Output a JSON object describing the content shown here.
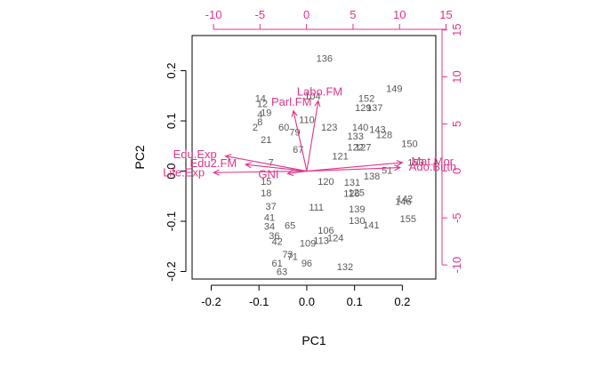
{
  "chart_data": {
    "type": "scatter",
    "subtype": "pca-biplot",
    "xlabel": "PC1",
    "ylabel": "PC2",
    "xlim": [
      -0.24,
      0.27
    ],
    "ylim": [
      -0.215,
      0.27
    ],
    "x_ticks": [
      -0.2,
      -0.1,
      0.0,
      0.1,
      0.2
    ],
    "x_tick_labels": [
      "-0.2",
      "-0.1",
      "0.0",
      "0.1",
      "0.2"
    ],
    "y_ticks": [
      -0.2,
      -0.1,
      0.0,
      0.1,
      0.2
    ],
    "y_tick_labels": [
      "-0.2",
      "-0.1",
      "0.0",
      "0.1",
      "0.2"
    ],
    "top_axis": {
      "ticks": [
        -10,
        -5,
        0,
        5,
        10,
        15
      ],
      "tick_labels": [
        "-10",
        "-5",
        "0",
        "5",
        "10",
        "15"
      ],
      "lim": [
        -12.3,
        13.9
      ]
    },
    "right_axis": {
      "ticks": [
        -10,
        -5,
        0,
        5,
        10,
        15
      ],
      "tick_labels": [
        "-10",
        "-5",
        "0",
        "5",
        "10",
        "15"
      ],
      "lim": [
        -11.5,
        14.4
      ]
    },
    "colors": {
      "observations": "#595959",
      "variables": "#e0348a",
      "axes": "#000000"
    },
    "observations": [
      {
        "label": "136",
        "x": 0.037,
        "y": 0.225
      },
      {
        "label": "149",
        "x": 0.183,
        "y": 0.165
      },
      {
        "label": "104",
        "x": 0.012,
        "y": 0.15
      },
      {
        "label": "152",
        "x": 0.125,
        "y": 0.145
      },
      {
        "label": "14",
        "x": -0.097,
        "y": 0.145
      },
      {
        "label": "12",
        "x": -0.093,
        "y": 0.135
      },
      {
        "label": "129",
        "x": 0.118,
        "y": 0.127
      },
      {
        "label": "137",
        "x": 0.142,
        "y": 0.127
      },
      {
        "label": "4",
        "x": -0.098,
        "y": 0.113
      },
      {
        "label": "19",
        "x": -0.085,
        "y": 0.117
      },
      {
        "label": "110",
        "x": 0.0,
        "y": 0.103
      },
      {
        "label": "123",
        "x": 0.047,
        "y": 0.088
      },
      {
        "label": "60",
        "x": -0.048,
        "y": 0.088
      },
      {
        "label": "8",
        "x": -0.098,
        "y": 0.098
      },
      {
        "label": "2",
        "x": -0.108,
        "y": 0.088
      },
      {
        "label": "140",
        "x": 0.112,
        "y": 0.088
      },
      {
        "label": "143",
        "x": 0.148,
        "y": 0.083
      },
      {
        "label": "128",
        "x": 0.162,
        "y": 0.073
      },
      {
        "label": "79",
        "x": -0.025,
        "y": 0.078
      },
      {
        "label": "133",
        "x": 0.102,
        "y": 0.07
      },
      {
        "label": "150",
        "x": 0.215,
        "y": 0.055
      },
      {
        "label": "122",
        "x": 0.102,
        "y": 0.048
      },
      {
        "label": "127",
        "x": 0.118,
        "y": 0.048
      },
      {
        "label": "121",
        "x": 0.07,
        "y": 0.03
      },
      {
        "label": "153",
        "x": 0.228,
        "y": 0.018
      },
      {
        "label": "51",
        "x": 0.168,
        "y": 0.002
      },
      {
        "label": "138",
        "x": 0.136,
        "y": -0.01
      },
      {
        "label": "120",
        "x": 0.04,
        "y": -0.02
      },
      {
        "label": "131",
        "x": 0.095,
        "y": -0.022
      },
      {
        "label": "125",
        "x": 0.104,
        "y": -0.042
      },
      {
        "label": "126",
        "x": 0.094,
        "y": -0.044
      },
      {
        "label": "142",
        "x": 0.205,
        "y": -0.055
      },
      {
        "label": "146",
        "x": 0.202,
        "y": -0.06
      },
      {
        "label": "139",
        "x": 0.105,
        "y": -0.075
      },
      {
        "label": "130",
        "x": 0.105,
        "y": -0.098
      },
      {
        "label": "141",
        "x": 0.135,
        "y": -0.107
      },
      {
        "label": "155",
        "x": 0.212,
        "y": -0.095
      },
      {
        "label": "106",
        "x": 0.04,
        "y": -0.118
      },
      {
        "label": "124",
        "x": 0.06,
        "y": -0.133
      },
      {
        "label": "113",
        "x": 0.03,
        "y": -0.138
      },
      {
        "label": "109",
        "x": 0.002,
        "y": -0.143
      },
      {
        "label": "15",
        "x": -0.085,
        "y": -0.02
      },
      {
        "label": "18",
        "x": -0.085,
        "y": -0.043
      },
      {
        "label": "37",
        "x": -0.075,
        "y": -0.07
      },
      {
        "label": "41",
        "x": -0.078,
        "y": -0.092
      },
      {
        "label": "34",
        "x": -0.078,
        "y": -0.11
      },
      {
        "label": "36",
        "x": -0.068,
        "y": -0.128
      },
      {
        "label": "42",
        "x": -0.062,
        "y": -0.14
      },
      {
        "label": "65",
        "x": -0.035,
        "y": -0.108
      },
      {
        "label": "111",
        "x": 0.02,
        "y": -0.072
      },
      {
        "label": "73",
        "x": -0.04,
        "y": -0.165
      },
      {
        "label": "71",
        "x": -0.03,
        "y": -0.17
      },
      {
        "label": "61",
        "x": -0.062,
        "y": -0.183
      },
      {
        "label": "96",
        "x": 0.0,
        "y": -0.183
      },
      {
        "label": "63",
        "x": -0.052,
        "y": -0.2
      },
      {
        "label": "132",
        "x": 0.08,
        "y": -0.19
      },
      {
        "label": "67",
        "x": -0.018,
        "y": 0.043
      },
      {
        "label": "7",
        "x": -0.075,
        "y": 0.018
      },
      {
        "label": "21",
        "x": -0.085,
        "y": 0.063
      }
    ],
    "variables": [
      {
        "label": "Labo.FM",
        "x": 0.024,
        "y": 0.14
      },
      {
        "label": "Parl.FM",
        "x": -0.028,
        "y": 0.12
      },
      {
        "label": "Edu.Exp",
        "x": -0.17,
        "y": 0.03
      },
      {
        "label": "Edu2.FM",
        "x": -0.128,
        "y": 0.013
      },
      {
        "label": "Life.Exp",
        "x": -0.195,
        "y": -0.003
      },
      {
        "label": "GNI",
        "x": -0.04,
        "y": -0.005
      },
      {
        "label": "Mat.Mor",
        "x": 0.2,
        "y": 0.017
      },
      {
        "label": "Ado.Birth",
        "x": 0.195,
        "y": 0.007
      }
    ]
  }
}
